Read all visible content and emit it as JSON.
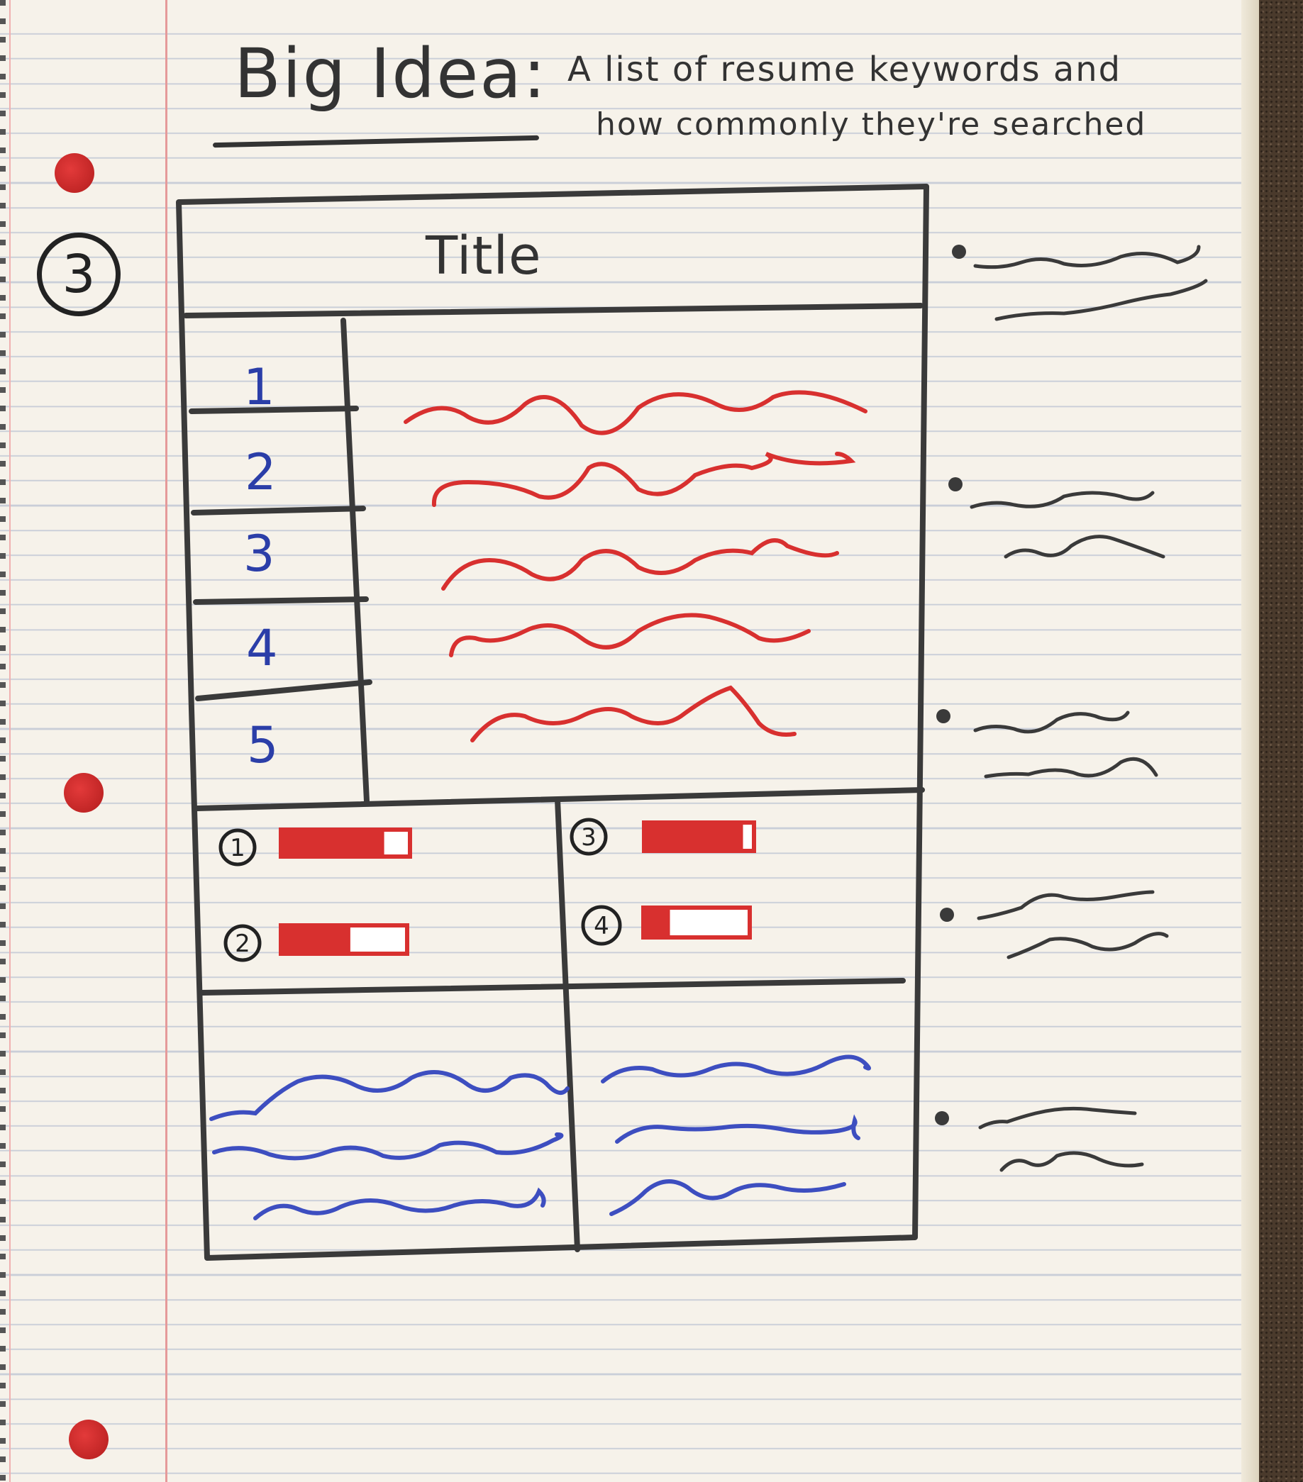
{
  "heading": {
    "label": "Big Idea:",
    "line1": "A list of resume keywords and",
    "line2": "how commonly they're searched"
  },
  "page_number": "3",
  "wireframe": {
    "title": "Title",
    "rank_numbers": [
      "1",
      "2",
      "3",
      "4",
      "5"
    ],
    "bar_items": [
      {
        "marker": "1",
        "fill": 0.8
      },
      {
        "marker": "2",
        "fill": 0.55
      },
      {
        "marker": "3",
        "fill": 0.9
      },
      {
        "marker": "4",
        "fill": 0.25
      }
    ]
  },
  "colors": {
    "ink": "#333333",
    "red": "#d8302f",
    "blue": "#3d4ec0",
    "paper": "#f6f2ea",
    "rule": "#c9ced8",
    "margin": "#e59a9a"
  }
}
